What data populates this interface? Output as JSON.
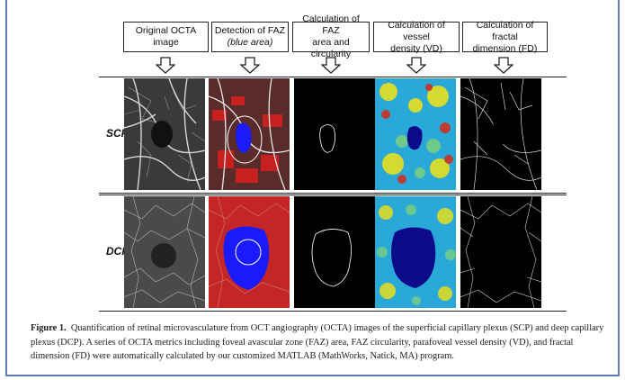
{
  "headers": [
    {
      "line1": "Original OCTA image",
      "line2": ""
    },
    {
      "line1": "Detection of FAZ",
      "line2": "(blue area)"
    },
    {
      "line1": "Calculation of FAZ",
      "line2": "area and circularity"
    },
    {
      "line1": "Calculation of vessel",
      "line2": "density (VD)"
    },
    {
      "line1": "Calculation of fractal",
      "line2": "dimension (FD)"
    }
  ],
  "rows": [
    {
      "label": "SCP"
    },
    {
      "label": "DCP"
    }
  ],
  "caption": {
    "prefix": "Figure 1.",
    "text": "Quantification of retinal microvasculature from OCT angiography (OCTA) images of the superficial capillary plexus (SCP) and deep capillary plexus (DCP). A series of OCTA metrics including foveal avascular zone (FAZ) area, FAZ circularity, parafoveal vessel density (VD), and fractal dimension (FD) were automatically calculated by our customized MATLAB (MathWorks, Natick, MA) program."
  },
  "colors": {
    "frame": "#5b7fb6",
    "faz_blue": "#1a1aff",
    "vessel_red": "#d21f1f"
  }
}
